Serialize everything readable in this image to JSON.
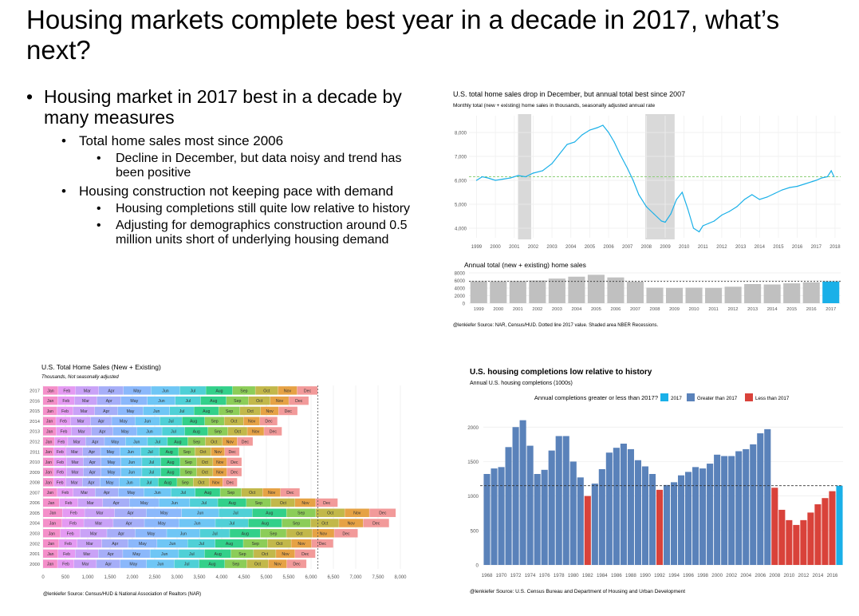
{
  "slide": {
    "title": "Housing markets complete best year in a decade in 2017, what’s next?",
    "bullets": [
      {
        "level": 1,
        "text": "Housing market in 2017 best in a decade by many measures"
      },
      {
        "level": 2,
        "text": "Total home sales most since 2006"
      },
      {
        "level": 3,
        "text": "Decline in December, but data noisy and trend has been positive"
      },
      {
        "level": 2,
        "text": "Housing construction not keeping pace with demand"
      },
      {
        "level": 3,
        "text": "Housing completions still quite low relative to history"
      },
      {
        "level": 3,
        "text": "Adjusting for demographics construction around 0.5 million units short of underlying housing demand"
      }
    ],
    "bullet_char": "•"
  },
  "chart_data": [
    {
      "type": "line",
      "title": "U.S. total home sales drop in December, but annual total best since 2007",
      "subtitle": "Monthly total (new + existing) home sales in thousands, seasonally adjusted annual rate",
      "x_ticks": [
        "1999",
        "2000",
        "2001",
        "2002",
        "2003",
        "2004",
        "2005",
        "2006",
        "2007",
        "2008",
        "2009",
        "2010",
        "2011",
        "2012",
        "2013",
        "2014",
        "2015",
        "2016",
        "2017",
        "2018"
      ],
      "y_ticks": [
        "4,000",
        "5,000",
        "6,000",
        "7,000",
        "8,000"
      ],
      "ylim": [
        3600,
        8700
      ],
      "xlim": [
        1998.6,
        2018.3
      ],
      "reference_value": 6150,
      "recessions": [
        [
          2001.2,
          2001.9
        ],
        [
          2007.95,
          2009.5
        ]
      ],
      "series": [
        {
          "x": [
            1999.0,
            1999.3,
            1999.6,
            2000.0,
            2000.4,
            2000.8,
            2001.2,
            2001.6,
            2002.0,
            2002.5,
            2003.0,
            2003.4,
            2003.8,
            2004.2,
            2004.6,
            2005.0,
            2005.4,
            2005.7,
            2006.0,
            2006.3,
            2006.6,
            2007.0,
            2007.3,
            2007.6,
            2008.0,
            2008.4,
            2008.8,
            2009.0,
            2009.3,
            2009.6,
            2009.9,
            2010.2,
            2010.5,
            2010.8,
            2011.0,
            2011.3,
            2011.6,
            2012.0,
            2012.4,
            2012.8,
            2013.2,
            2013.6,
            2014.0,
            2014.4,
            2014.8,
            2015.2,
            2015.6,
            2016.0,
            2016.4,
            2016.8,
            2017.0,
            2017.3,
            2017.6,
            2017.8,
            2017.95
          ],
          "values": [
            6000,
            6150,
            6100,
            6000,
            6050,
            6100,
            6200,
            6150,
            6300,
            6400,
            6700,
            7100,
            7500,
            7600,
            7900,
            8100,
            8200,
            8300,
            8000,
            7600,
            7100,
            6500,
            6000,
            5400,
            4900,
            4600,
            4300,
            4250,
            4600,
            5200,
            5500,
            4800,
            4000,
            3850,
            4100,
            4200,
            4300,
            4550,
            4700,
            4900,
            5200,
            5400,
            5200,
            5300,
            5450,
            5600,
            5700,
            5750,
            5850,
            5950,
            6000,
            6100,
            6150,
            6400,
            6150
          ],
          "color": "#1ab0e8"
        }
      ]
    },
    {
      "type": "bar",
      "title": "Annual total (new + existing) home sales",
      "categories": [
        "1999",
        "2000",
        "2001",
        "2002",
        "2003",
        "2004",
        "2005",
        "2006",
        "2007",
        "2008",
        "2009",
        "2010",
        "2011",
        "2012",
        "2013",
        "2014",
        "2015",
        "2016",
        "2017"
      ],
      "values": [
        5800,
        5800,
        5850,
        6000,
        6500,
        7000,
        7500,
        6800,
        5700,
        4100,
        4050,
        4100,
        4050,
        4350,
        5050,
        4950,
        5250,
        5500,
        5750
      ],
      "highlight_category": "2017",
      "highlight_color": "#1ab0e8",
      "bar_color": "#c0c0c0",
      "y_ticks": [
        "0",
        "2000",
        "4000",
        "6000",
        "8000"
      ],
      "ylim": [
        0,
        8000
      ],
      "reference_value": 5750,
      "caption": "@lenkiefer Source: NAR, Census/HUD. Dotted line 2017 value. Shaded area NBER Recessions."
    },
    {
      "type": "bar",
      "orientation": "horizontal-stacked",
      "title": "U.S. Total Home Sales (New + Existing)",
      "subtitle": "Thousands, Not seasonally adjusted",
      "categories": [
        "2017",
        "2016",
        "2015",
        "2014",
        "2013",
        "2012",
        "2011",
        "2010",
        "2009",
        "2008",
        "2007",
        "2006",
        "2005",
        "2004",
        "2003",
        "2002",
        "2001",
        "2000"
      ],
      "months": [
        "Jan",
        "Feb",
        "Mar",
        "Apr",
        "May",
        "Jun",
        "Jul",
        "Aug",
        "Sep",
        "Oct",
        "Nov",
        "Dec"
      ],
      "month_colors": [
        "#f48fc9",
        "#e49af2",
        "#c9a2f7",
        "#a6aef8",
        "#8bb8fb",
        "#6fc6f5",
        "#4fd0d6",
        "#33d08a",
        "#8ccd58",
        "#c2b84a",
        "#e6a245",
        "#f29a9a"
      ],
      "annual_totals": [
        6150,
        5950,
        5700,
        5250,
        5350,
        4700,
        4400,
        4450,
        4450,
        4350,
        5750,
        6600,
        7900,
        7750,
        7050,
        6500,
        6100,
        5900
      ],
      "month_shares": [
        0.055,
        0.063,
        0.085,
        0.09,
        0.1,
        0.105,
        0.095,
        0.097,
        0.083,
        0.082,
        0.07,
        0.075
      ],
      "x_ticks": [
        "0",
        "500",
        "1,000",
        "1,500",
        "2,000",
        "2,500",
        "3,000",
        "3,500",
        "4,000",
        "4,500",
        "5,000",
        "5,500",
        "6,000",
        "6,500",
        "7,000",
        "7,500",
        "8,000"
      ],
      "xlim": [
        0,
        8250
      ],
      "reference_value": 6150,
      "caption": "@lenkiefer Source: Census/HUD & National Association of Realtors (NAR)"
    },
    {
      "type": "bar",
      "title": "U.S. housing completions low relative to history",
      "subtitle": "Annual U.S. housing completions (1000s)",
      "legend_title": "Annual completions greater or less than 2017?",
      "legend": [
        {
          "name": "2017",
          "color": "#1ab0e8"
        },
        {
          "name": "Greater than 2017",
          "color": "#5a82ba"
        },
        {
          "name": "Less than 2017",
          "color": "#d9423a"
        }
      ],
      "categories": [
        "1968",
        "1969",
        "1970",
        "1971",
        "1972",
        "1973",
        "1974",
        "1975",
        "1976",
        "1977",
        "1978",
        "1979",
        "1980",
        "1981",
        "1982",
        "1983",
        "1984",
        "1985",
        "1986",
        "1987",
        "1988",
        "1989",
        "1990",
        "1991",
        "1992",
        "1993",
        "1994",
        "1995",
        "1996",
        "1997",
        "1998",
        "1999",
        "2000",
        "2001",
        "2002",
        "2003",
        "2004",
        "2005",
        "2006",
        "2007",
        "2008",
        "2009",
        "2010",
        "2011",
        "2012",
        "2013",
        "2014",
        "2015",
        "2016",
        "2017"
      ],
      "x_tick_labels": [
        "1968",
        "1970",
        "1972",
        "1974",
        "1976",
        "1978",
        "1980",
        "1982",
        "1984",
        "1986",
        "1988",
        "1990",
        "1992",
        "1994",
        "1996",
        "1998",
        "2000",
        "2002",
        "2004",
        "2006",
        "2008",
        "2010",
        "2012",
        "2014",
        "2016"
      ],
      "values": [
        1320,
        1400,
        1420,
        1710,
        2000,
        2100,
        1730,
        1320,
        1380,
        1660,
        1870,
        1870,
        1500,
        1270,
        1000,
        1180,
        1390,
        1630,
        1700,
        1760,
        1680,
        1520,
        1430,
        1320,
        1090,
        1160,
        1200,
        1300,
        1350,
        1420,
        1400,
        1470,
        1600,
        1580,
        1580,
        1650,
        1680,
        1750,
        1910,
        1970,
        1120,
        800,
        650,
        580,
        650,
        760,
        880,
        970,
        1070,
        1150
      ],
      "value_colors": [
        "#5a82ba",
        "#5a82ba",
        "#5a82ba",
        "#5a82ba",
        "#5a82ba",
        "#5a82ba",
        "#5a82ba",
        "#5a82ba",
        "#5a82ba",
        "#5a82ba",
        "#5a82ba",
        "#5a82ba",
        "#5a82ba",
        "#5a82ba",
        "#d9423a",
        "#5a82ba",
        "#5a82ba",
        "#5a82ba",
        "#5a82ba",
        "#5a82ba",
        "#5a82ba",
        "#5a82ba",
        "#5a82ba",
        "#5a82ba",
        "#d9423a",
        "#5a82ba",
        "#5a82ba",
        "#5a82ba",
        "#5a82ba",
        "#5a82ba",
        "#5a82ba",
        "#5a82ba",
        "#5a82ba",
        "#5a82ba",
        "#5a82ba",
        "#5a82ba",
        "#5a82ba",
        "#5a82ba",
        "#5a82ba",
        "#5a82ba",
        "#d9423a",
        "#d9423a",
        "#d9423a",
        "#d9423a",
        "#d9423a",
        "#d9423a",
        "#d9423a",
        "#d9423a",
        "#d9423a",
        "#1ab0e8"
      ],
      "y_ticks": [
        "0",
        "500",
        "1000",
        "1500",
        "2000"
      ],
      "ylim": [
        0,
        2200
      ],
      "reference_value": 1150,
      "caption": "@lenkiefer Source: U.S. Census Bureau and Department of Housing and Urban Development"
    }
  ]
}
